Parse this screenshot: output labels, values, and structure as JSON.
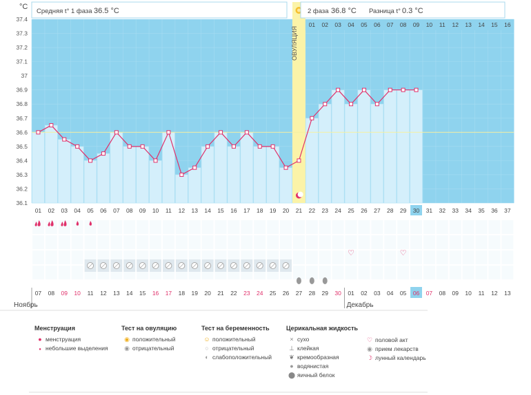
{
  "header": {
    "unit_label": "°C",
    "phase1_label": "Средняя t° 1 фаза",
    "phase1_value": "36.5 °C",
    "phase2_label": "2 фаза",
    "phase2_value": "36.8 °C",
    "diff_label": "Разница t°",
    "diff_value": "0.3 °C",
    "ovulation_label": "ОВУЛЯЦИЯ"
  },
  "chart_data": {
    "type": "line",
    "title": "",
    "ylabel": "°C",
    "ylim": [
      36.1,
      37.4
    ],
    "yticks": [
      "36.1",
      "36.2",
      "36.3",
      "36.4",
      "36.5",
      "36.6",
      "36.7",
      "36.8",
      "36.9",
      "37",
      "37.1",
      "37.2",
      "37.3",
      "37.4"
    ],
    "cycle_days": [
      "01",
      "02",
      "03",
      "04",
      "05",
      "06",
      "07",
      "08",
      "09",
      "10",
      "11",
      "12",
      "13",
      "14",
      "15",
      "16",
      "17",
      "18",
      "19",
      "20",
      "21",
      "22",
      "23",
      "24",
      "25",
      "26",
      "27",
      "28",
      "29",
      "30",
      "31",
      "32",
      "33",
      "34",
      "35",
      "36",
      "37"
    ],
    "series": [
      {
        "name": "Базальная температура",
        "values": [
          36.6,
          36.65,
          36.55,
          36.5,
          36.4,
          36.45,
          36.6,
          36.5,
          36.5,
          36.4,
          36.6,
          36.3,
          36.35,
          36.5,
          36.6,
          36.5,
          36.6,
          36.5,
          36.5,
          36.35,
          36.4,
          36.7,
          36.8,
          36.9,
          36.8,
          36.9,
          36.8,
          36.9,
          36.9,
          36.9
        ]
      }
    ],
    "coverline": 36.6,
    "ovulation_day": 21,
    "current_day": 30,
    "phase2_days": [
      "01",
      "02",
      "03",
      "04",
      "05",
      "06",
      "07",
      "08",
      "09",
      "10",
      "11",
      "12",
      "13",
      "14",
      "15",
      "16"
    ],
    "calendar_dates": [
      "07",
      "08",
      "09",
      "10",
      "11",
      "12",
      "13",
      "14",
      "15",
      "16",
      "17",
      "18",
      "19",
      "20",
      "21",
      "22",
      "23",
      "24",
      "25",
      "26",
      "27",
      "28",
      "29",
      "30",
      "01",
      "02",
      "03",
      "04",
      "05",
      "06",
      "07",
      "08",
      "09",
      "10",
      "11",
      "12",
      "13"
    ],
    "weekend_dates_index": [
      2,
      3,
      9,
      10,
      16,
      17,
      23,
      29,
      30
    ],
    "month_start": "Ноябрь",
    "month_next": "Декабрь",
    "month_next_index": 24,
    "menstruation_days": [
      1,
      2,
      3,
      4,
      5
    ],
    "medication_days": [
      5,
      6,
      7,
      8,
      9,
      10,
      11,
      12,
      13,
      14,
      15,
      16,
      17,
      18,
      19,
      20
    ],
    "cervical_days": [
      21,
      22,
      23
    ],
    "intercourse_days": [
      25,
      29
    ],
    "ovulation_test_day": 21,
    "moon_day": 21
  },
  "legend": {
    "groups": [
      {
        "title": "Менструация",
        "items": [
          "менструация",
          "небольшие выделения"
        ]
      },
      {
        "title": "Тест на овуляцию",
        "items": [
          "положительный",
          "отрицательный"
        ]
      },
      {
        "title": "Тест на беременность",
        "items": [
          "положительный",
          "отрицательный",
          "слабоположительный"
        ]
      },
      {
        "title": "Церикальная жидкость",
        "items": [
          "сухо",
          "клейкая",
          "кремообразная",
          "водянистая",
          "яичный белок"
        ]
      },
      {
        "title": "",
        "items": [
          "половой акт",
          "прием лекарств",
          "лунный календарь"
        ]
      }
    ]
  }
}
